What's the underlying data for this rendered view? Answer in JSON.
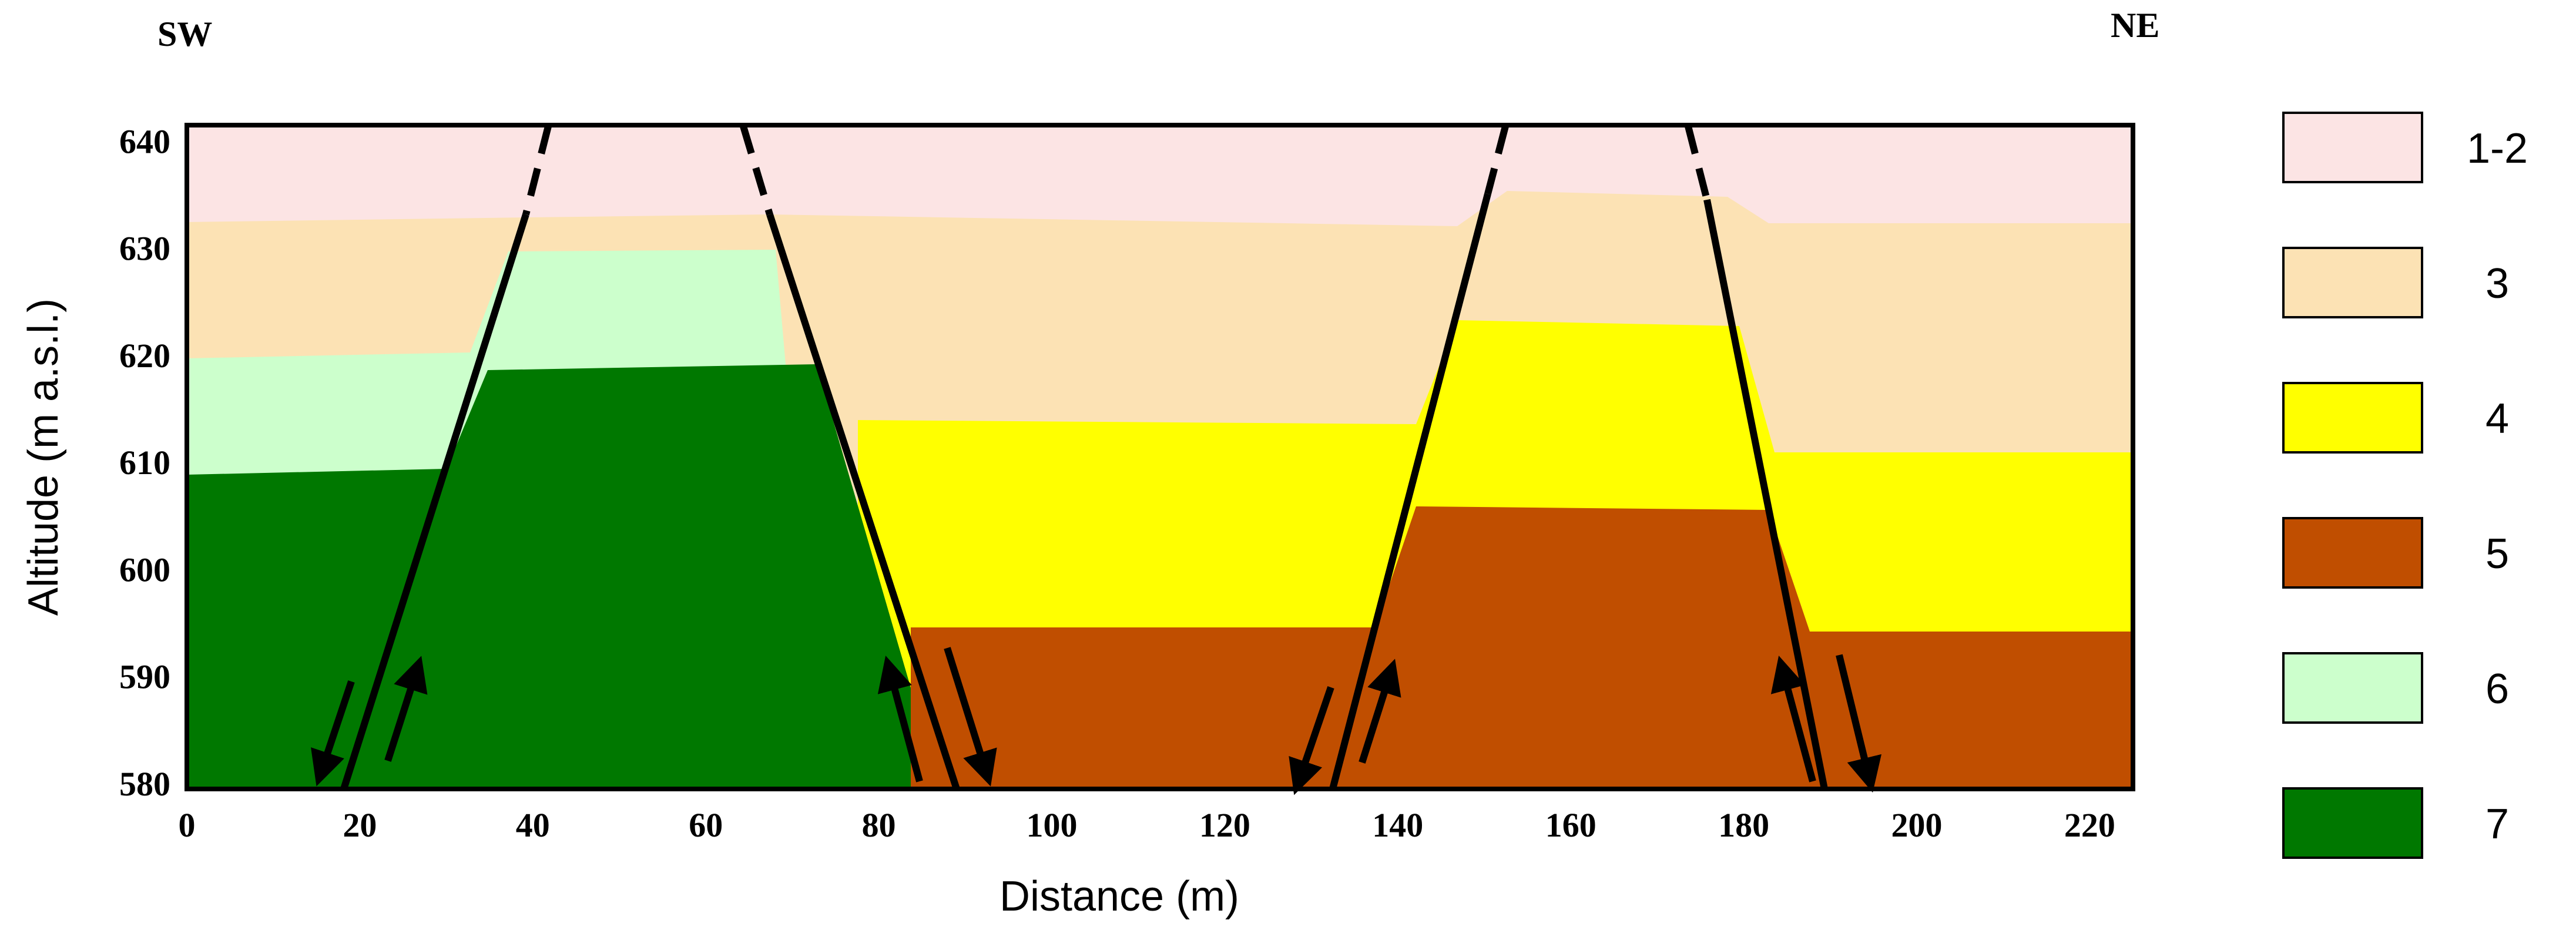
{
  "section": {
    "left_label": "SW",
    "right_label": "NE",
    "x_axis": {
      "label": "Distance (m)",
      "ticks": [
        0,
        20,
        40,
        60,
        80,
        100,
        120,
        140,
        160,
        180,
        200,
        220
      ],
      "range": [
        0,
        225
      ]
    },
    "y_axis": {
      "label": "Altitude (m a.s.l.)",
      "ticks": [
        580,
        590,
        600,
        610,
        620,
        630,
        640
      ],
      "range": [
        579.5,
        641.5
      ]
    }
  },
  "legend": [
    {
      "label": "1-2",
      "color": "#fce4e4"
    },
    {
      "label": "3",
      "color": "#fce2b4"
    },
    {
      "label": "4",
      "color": "#ffff00"
    },
    {
      "label": "5",
      "color": "#c04e00"
    },
    {
      "label": "6",
      "color": "#ccffcc"
    },
    {
      "label": "7",
      "color": "#007800"
    }
  ],
  "faults": [
    {
      "name": "fault-1",
      "top": [
        39.5,
        641.5
      ],
      "bottom": [
        17,
        579.5
      ],
      "sense": "reverse"
    },
    {
      "name": "fault-2",
      "top": [
        61.5,
        641.5
      ],
      "bottom": [
        81,
        579.5
      ],
      "sense": "reverse"
    },
    {
      "name": "fault-3",
      "top": [
        143.5,
        641.5
      ],
      "bottom": [
        126,
        579.5
      ],
      "sense": "reverse"
    },
    {
      "name": "fault-4",
      "top": [
        166,
        641.5
      ],
      "bottom": [
        179.5,
        579.5
      ],
      "sense": "reverse"
    }
  ]
}
